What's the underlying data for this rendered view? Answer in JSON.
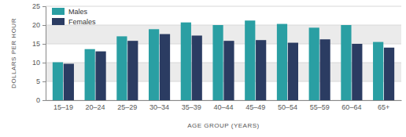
{
  "chart_data": {
    "type": "bar",
    "x_label": "AGE GROUP (YEARS)",
    "y_label": "DOLLARS PER HOUR",
    "categories": [
      "15–19",
      "20–24",
      "25–29",
      "30–34",
      "35–39",
      "40–44",
      "45–49",
      "50–54",
      "55–59",
      "60–64",
      "65+"
    ],
    "series": [
      {
        "name": "Males",
        "color": "#2a9fa3",
        "values": [
          10.1,
          13.6,
          17.0,
          18.9,
          20.7,
          20.0,
          21.2,
          20.3,
          19.3,
          20.0,
          15.5
        ]
      },
      {
        "name": "Females",
        "color": "#2b3c62",
        "values": [
          9.7,
          13.0,
          15.8,
          17.6,
          17.2,
          15.8,
          16.0,
          15.3,
          16.2,
          15.0,
          14.0
        ]
      }
    ],
    "ylim": [
      0,
      25
    ],
    "yticks": [
      0,
      5,
      10,
      15,
      20,
      25
    ],
    "grid": true,
    "legend": "upper left"
  }
}
